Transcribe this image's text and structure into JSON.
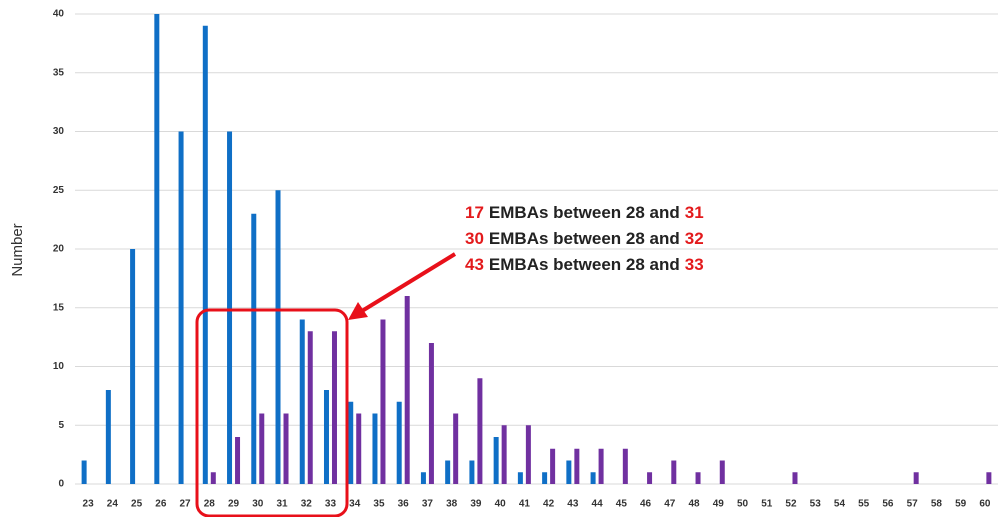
{
  "chart_data": {
    "type": "bar",
    "y_label": "Number",
    "categories": [
      "23",
      "24",
      "25",
      "26",
      "27",
      "28",
      "29",
      "30",
      "31",
      "32",
      "33",
      "34",
      "35",
      "36",
      "37",
      "38",
      "39",
      "40",
      "41",
      "42",
      "43",
      "44",
      "45",
      "46",
      "47",
      "48",
      "49",
      "50",
      "51",
      "52",
      "53",
      "54",
      "55",
      "56",
      "57",
      "58",
      "59",
      "60"
    ],
    "series": [
      {
        "color": "#0f6fc6",
        "values": [
          2,
          8,
          20,
          40,
          30,
          39,
          30,
          23,
          25,
          14,
          8,
          7,
          6,
          7,
          1,
          2,
          2,
          4,
          1,
          1,
          2,
          1,
          0,
          0,
          0,
          0,
          0,
          0,
          0,
          0,
          0,
          0,
          0,
          0,
          0,
          0,
          0,
          0
        ]
      },
      {
        "color": "#7030a0",
        "values": [
          0,
          0,
          0,
          0,
          0,
          1,
          4,
          6,
          6,
          13,
          13,
          6,
          14,
          16,
          12,
          6,
          9,
          5,
          5,
          3,
          3,
          3,
          3,
          1,
          2,
          1,
          2,
          0,
          0,
          1,
          0,
          0,
          0,
          0,
          1,
          0,
          0,
          1
        ]
      }
    ],
    "ylim": [
      0,
      40
    ],
    "yticks": [
      0,
      5,
      10,
      15,
      20,
      25,
      30,
      35,
      40
    ],
    "grid": true,
    "annotations": [
      {
        "count": "17",
        "text": "EMBAs between 28 and",
        "end": "31"
      },
      {
        "count": "30",
        "text": "EMBAs between 28 and",
        "end": "32"
      },
      {
        "count": "43",
        "text": "EMBAs between 28 and",
        "end": "33"
      }
    ]
  }
}
